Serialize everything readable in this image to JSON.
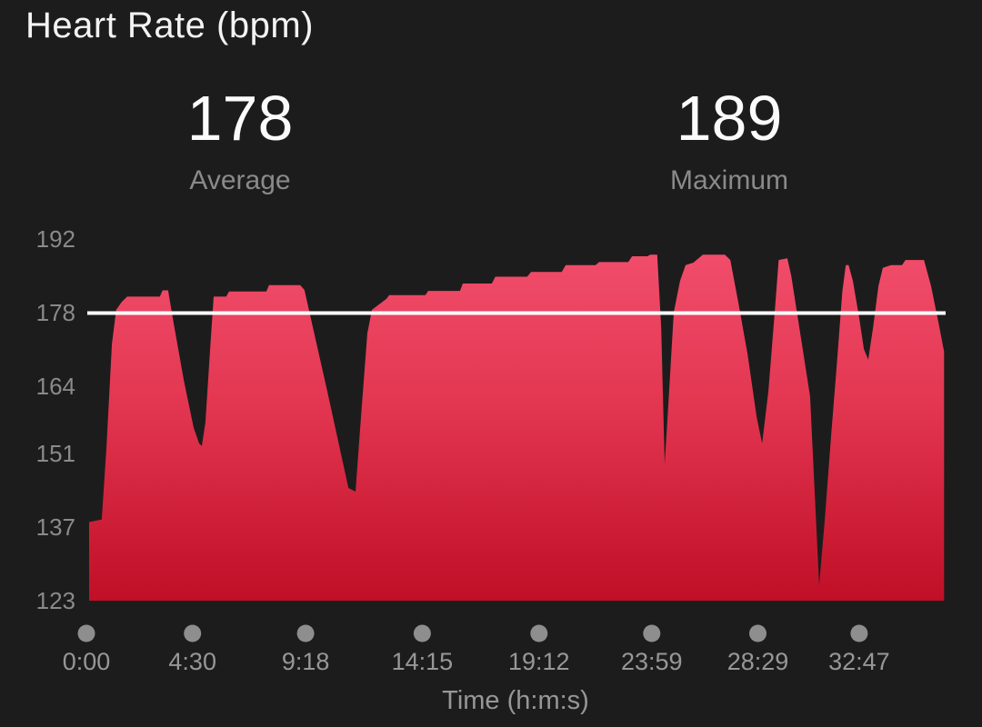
{
  "title": "Heart Rate (bpm)",
  "stats": [
    {
      "value": "178",
      "label": "Average"
    },
    {
      "value": "189",
      "label": "Maximum"
    }
  ],
  "chart_data": {
    "type": "area",
    "title": "Heart Rate (bpm)",
    "xlabel": "Time (h:m:s)",
    "ylabel": "Heart rate (bpm)",
    "x_unit": "seconds",
    "xlim": [
      0,
      2187
    ],
    "ylim": [
      123,
      192
    ],
    "y_ticks": [
      192,
      178,
      164,
      151,
      137,
      123
    ],
    "x_ticks": [
      {
        "t": 0,
        "label": "0:00"
      },
      {
        "t": 270,
        "label": "4:30"
      },
      {
        "t": 558,
        "label": "9:18"
      },
      {
        "t": 855,
        "label": "14:15"
      },
      {
        "t": 1152,
        "label": "19:12"
      },
      {
        "t": 1439,
        "label": "23:59"
      },
      {
        "t": 1709,
        "label": "28:29"
      },
      {
        "t": 1967,
        "label": "32:47"
      }
    ],
    "average_bpm": 178,
    "maximum_bpm": 189,
    "average_line": {
      "value": 178,
      "color": "#ffffff"
    },
    "grid": false,
    "legend": false,
    "series": [
      {
        "name": "Heart Rate",
        "points": [
          [
            7,
            138
          ],
          [
            39,
            138.5
          ],
          [
            51,
            152
          ],
          [
            65,
            172
          ],
          [
            76,
            178.5
          ],
          [
            90,
            180
          ],
          [
            104,
            181
          ],
          [
            187,
            181
          ],
          [
            194,
            182.2
          ],
          [
            208,
            182.2
          ],
          [
            222,
            176
          ],
          [
            248,
            165
          ],
          [
            273,
            156
          ],
          [
            287,
            153
          ],
          [
            294,
            152.5
          ],
          [
            303,
            157
          ],
          [
            315,
            171
          ],
          [
            324,
            181
          ],
          [
            356,
            181
          ],
          [
            363,
            182
          ],
          [
            458,
            182
          ],
          [
            465,
            183.2
          ],
          [
            544,
            183.2
          ],
          [
            555,
            182.3
          ],
          [
            613,
            163
          ],
          [
            667,
            144.5
          ],
          [
            685,
            143.8
          ],
          [
            699,
            158
          ],
          [
            715,
            174
          ],
          [
            727,
            178.5
          ],
          [
            764,
            180.6
          ],
          [
            771,
            181.3
          ],
          [
            863,
            181.3
          ],
          [
            870,
            182.1
          ],
          [
            951,
            182.1
          ],
          [
            958,
            183.5
          ],
          [
            1032,
            183.5
          ],
          [
            1041,
            184.8
          ],
          [
            1122,
            184.8
          ],
          [
            1132,
            185.7
          ],
          [
            1210,
            185.7
          ],
          [
            1220,
            187
          ],
          [
            1296,
            187
          ],
          [
            1305,
            187.6
          ],
          [
            1379,
            187.6
          ],
          [
            1389,
            188.7
          ],
          [
            1428,
            188.7
          ],
          [
            1435,
            189
          ],
          [
            1453,
            189
          ],
          [
            1463,
            175
          ],
          [
            1472,
            149
          ],
          [
            1481,
            160
          ],
          [
            1495,
            178
          ],
          [
            1511,
            184
          ],
          [
            1525,
            187
          ],
          [
            1545,
            187.5
          ],
          [
            1569,
            189
          ],
          [
            1625,
            189
          ],
          [
            1639,
            188
          ],
          [
            1659,
            180
          ],
          [
            1683,
            170
          ],
          [
            1706,
            158
          ],
          [
            1720,
            153
          ],
          [
            1736,
            163
          ],
          [
            1752,
            178
          ],
          [
            1762,
            188
          ],
          [
            1784,
            188.3
          ],
          [
            1794,
            185
          ],
          [
            1821,
            172
          ],
          [
            1842,
            162
          ],
          [
            1856,
            140
          ],
          [
            1865,
            126
          ],
          [
            1879,
            138
          ],
          [
            1896,
            155
          ],
          [
            1910,
            168
          ],
          [
            1924,
            182
          ],
          [
            1933,
            187
          ],
          [
            1940,
            187
          ],
          [
            1951,
            184
          ],
          [
            1967,
            177
          ],
          [
            1979,
            171
          ],
          [
            1990,
            169
          ],
          [
            2002,
            175
          ],
          [
            2016,
            183
          ],
          [
            2027,
            186.5
          ],
          [
            2048,
            187
          ],
          [
            2076,
            187
          ],
          [
            2085,
            188
          ],
          [
            2132,
            188
          ],
          [
            2150,
            183
          ],
          [
            2169,
            176
          ],
          [
            2183,
            170.5
          ]
        ]
      }
    ],
    "colors": {
      "background": "#1d1c1c",
      "area_top": "#f2506e",
      "area_mid": "#e23550",
      "area_bottom": "#c00f27",
      "avg_line": "#ffffff",
      "marker_dot": "#8e8e8e",
      "y_tick_text": "#8a8a8a",
      "x_tick_text": "#979797",
      "stat_value_text": "#fbfbfb",
      "stat_label_text": "#8a8a8a",
      "title_text": "#f3f3f3"
    }
  }
}
